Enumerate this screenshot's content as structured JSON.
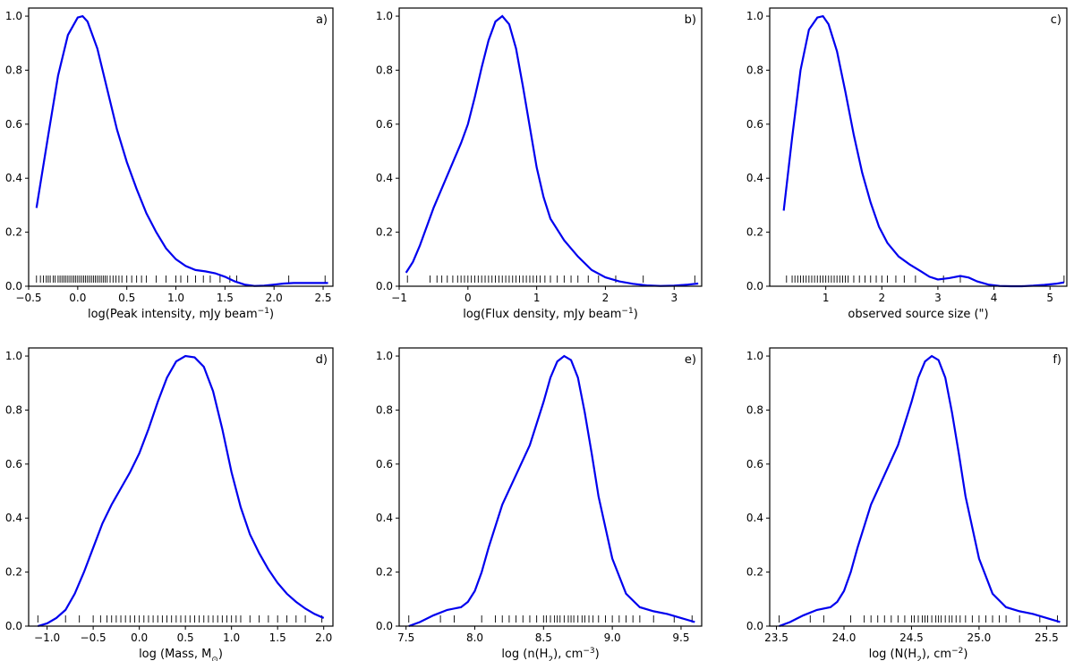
{
  "chart_data": [
    {
      "type": "line",
      "panel_label": "a)",
      "xlabel_main": "log(Peak intensity, mJy beam",
      "xlabel_sup": "−1",
      "xlabel_tail": ")",
      "xlim": [
        -0.5,
        2.6
      ],
      "ylim": [
        0,
        1.03
      ],
      "xticks": [
        -0.5,
        0.0,
        0.5,
        1.0,
        1.5,
        2.0,
        2.5
      ],
      "xtick_labels": [
        "−0.5",
        "0.0",
        "0.5",
        "1.0",
        "1.5",
        "2.0",
        "2.5"
      ],
      "yticks": [
        0.0,
        0.2,
        0.4,
        0.6,
        0.8,
        1.0
      ],
      "ytick_labels": [
        "0.0",
        "0.2",
        "0.4",
        "0.6",
        "0.8",
        "1.0"
      ],
      "series": [
        {
          "color": "#0000ee",
          "x": [
            -0.42,
            -0.3,
            -0.2,
            -0.1,
            0.0,
            0.05,
            0.1,
            0.2,
            0.3,
            0.4,
            0.5,
            0.6,
            0.7,
            0.8,
            0.9,
            1.0,
            1.1,
            1.2,
            1.3,
            1.4,
            1.5,
            1.6,
            1.7,
            1.8,
            1.9,
            2.0,
            2.1,
            2.2,
            2.3,
            2.4,
            2.55
          ],
          "y": [
            0.29,
            0.56,
            0.78,
            0.93,
            0.995,
            1.0,
            0.98,
            0.88,
            0.73,
            0.58,
            0.46,
            0.36,
            0.27,
            0.2,
            0.14,
            0.1,
            0.075,
            0.06,
            0.055,
            0.048,
            0.035,
            0.018,
            0.006,
            0.001,
            0.002,
            0.006,
            0.01,
            0.012,
            0.012,
            0.012,
            0.012
          ]
        }
      ],
      "rug": [
        -0.42,
        -0.38,
        -0.35,
        -0.32,
        -0.3,
        -0.28,
        -0.25,
        -0.23,
        -0.2,
        -0.18,
        -0.16,
        -0.14,
        -0.12,
        -0.1,
        -0.08,
        -0.06,
        -0.04,
        -0.02,
        0.0,
        0.02,
        0.04,
        0.06,
        0.08,
        0.1,
        0.12,
        0.14,
        0.16,
        0.18,
        0.2,
        0.22,
        0.24,
        0.26,
        0.28,
        0.3,
        0.33,
        0.36,
        0.39,
        0.42,
        0.45,
        0.5,
        0.55,
        0.6,
        0.65,
        0.7,
        0.8,
        0.9,
        1.0,
        1.05,
        1.12,
        1.2,
        1.28,
        1.35,
        1.45,
        1.55,
        1.62,
        2.15,
        2.52
      ]
    },
    {
      "type": "line",
      "panel_label": "b)",
      "xlabel_main": "log(Flux density, mJy beam",
      "xlabel_sup": "−1",
      "xlabel_tail": ")",
      "xlim": [
        -1.0,
        3.4
      ],
      "ylim": [
        0,
        1.03
      ],
      "xticks": [
        -1,
        0,
        1,
        2,
        3
      ],
      "xtick_labels": [
        "−1",
        "0",
        "1",
        "2",
        "3"
      ],
      "yticks": [
        0.0,
        0.2,
        0.4,
        0.6,
        0.8,
        1.0
      ],
      "ytick_labels": [
        "0.0",
        "0.2",
        "0.4",
        "0.6",
        "0.8",
        "1.0"
      ],
      "series": [
        {
          "color": "#0000ee",
          "x": [
            -0.9,
            -0.8,
            -0.7,
            -0.6,
            -0.5,
            -0.4,
            -0.3,
            -0.2,
            -0.1,
            0.0,
            0.1,
            0.2,
            0.3,
            0.4,
            0.5,
            0.6,
            0.7,
            0.8,
            0.9,
            1.0,
            1.1,
            1.2,
            1.4,
            1.6,
            1.8,
            2.0,
            2.2,
            2.4,
            2.6,
            2.8,
            3.0,
            3.2,
            3.35
          ],
          "y": [
            0.05,
            0.09,
            0.15,
            0.22,
            0.29,
            0.35,
            0.41,
            0.47,
            0.53,
            0.6,
            0.7,
            0.81,
            0.91,
            0.98,
            1.0,
            0.97,
            0.88,
            0.74,
            0.59,
            0.44,
            0.33,
            0.25,
            0.17,
            0.11,
            0.06,
            0.033,
            0.018,
            0.009,
            0.003,
            0.001,
            0.002,
            0.006,
            0.01
          ]
        }
      ],
      "rug": [
        -0.88,
        -0.55,
        -0.45,
        -0.38,
        -0.3,
        -0.22,
        -0.15,
        -0.1,
        -0.05,
        0.0,
        0.05,
        0.1,
        0.15,
        0.2,
        0.25,
        0.3,
        0.35,
        0.4,
        0.45,
        0.5,
        0.55,
        0.6,
        0.65,
        0.7,
        0.75,
        0.8,
        0.85,
        0.9,
        0.95,
        1.0,
        1.05,
        1.12,
        1.2,
        1.3,
        1.4,
        1.5,
        1.6,
        1.75,
        1.9,
        2.15,
        2.55,
        3.3
      ]
    },
    {
      "type": "line",
      "panel_label": "c)",
      "xlabel_main": "observed source size (\")",
      "xlabel_sup": "",
      "xlabel_tail": "",
      "xlim": [
        0.0,
        5.3
      ],
      "ylim": [
        0,
        1.03
      ],
      "xticks": [
        1,
        2,
        3,
        4,
        5
      ],
      "xtick_labels": [
        "1",
        "2",
        "3",
        "4",
        "5"
      ],
      "yticks": [
        0.0,
        0.2,
        0.4,
        0.6,
        0.8,
        1.0
      ],
      "ytick_labels": [
        "0.0",
        "0.2",
        "0.4",
        "0.6",
        "0.8",
        "1.0"
      ],
      "series": [
        {
          "color": "#0000ee",
          "x": [
            0.25,
            0.4,
            0.55,
            0.7,
            0.85,
            0.95,
            1.05,
            1.2,
            1.35,
            1.5,
            1.65,
            1.8,
            1.95,
            2.1,
            2.3,
            2.5,
            2.7,
            2.85,
            3.0,
            3.2,
            3.4,
            3.55,
            3.7,
            3.9,
            4.1,
            4.3,
            4.5,
            4.7,
            4.9,
            5.1,
            5.25
          ],
          "y": [
            0.28,
            0.55,
            0.8,
            0.95,
            0.995,
            1.0,
            0.97,
            0.87,
            0.72,
            0.56,
            0.42,
            0.31,
            0.22,
            0.16,
            0.11,
            0.08,
            0.055,
            0.035,
            0.025,
            0.03,
            0.038,
            0.032,
            0.018,
            0.006,
            0.001,
            0.0,
            0.0,
            0.002,
            0.005,
            0.009,
            0.014
          ]
        }
      ],
      "rug": [
        0.3,
        0.4,
        0.45,
        0.5,
        0.55,
        0.6,
        0.65,
        0.7,
        0.75,
        0.8,
        0.85,
        0.9,
        0.95,
        1.0,
        1.05,
        1.1,
        1.15,
        1.2,
        1.25,
        1.3,
        1.35,
        1.4,
        1.5,
        1.6,
        1.7,
        1.8,
        1.9,
        2.0,
        2.1,
        2.25,
        2.4,
        2.6,
        3.1,
        3.4,
        5.25
      ]
    },
    {
      "type": "line",
      "panel_label": "d)",
      "xlabel_main": "log (Mass, M",
      "xlabel_sup": "",
      "xlabel_sub": "⊙",
      "xlabel_tail": ")",
      "xlim": [
        -1.2,
        2.1
      ],
      "ylim": [
        0,
        1.03
      ],
      "xticks": [
        -1.0,
        -0.5,
        0.0,
        0.5,
        1.0,
        1.5,
        2.0
      ],
      "xtick_labels": [
        "−1.0",
        "−0.5",
        "0.0",
        "0.5",
        "1.0",
        "1.5",
        "2.0"
      ],
      "yticks": [
        0.0,
        0.2,
        0.4,
        0.6,
        0.8,
        1.0
      ],
      "ytick_labels": [
        "0.0",
        "0.2",
        "0.4",
        "0.6",
        "0.8",
        "1.0"
      ],
      "series": [
        {
          "color": "#0000ee",
          "x": [
            -1.1,
            -1.0,
            -0.9,
            -0.8,
            -0.7,
            -0.6,
            -0.5,
            -0.4,
            -0.3,
            -0.2,
            -0.1,
            0.0,
            0.1,
            0.2,
            0.3,
            0.4,
            0.5,
            0.6,
            0.7,
            0.8,
            0.9,
            1.0,
            1.1,
            1.2,
            1.3,
            1.4,
            1.5,
            1.6,
            1.7,
            1.8,
            1.9,
            2.0
          ],
          "y": [
            0.0,
            0.01,
            0.03,
            0.06,
            0.12,
            0.2,
            0.29,
            0.38,
            0.45,
            0.51,
            0.57,
            0.64,
            0.73,
            0.83,
            0.92,
            0.98,
            1.0,
            0.995,
            0.96,
            0.87,
            0.73,
            0.57,
            0.44,
            0.34,
            0.27,
            0.21,
            0.16,
            0.12,
            0.09,
            0.065,
            0.045,
            0.03
          ]
        }
      ],
      "rug": [
        -1.1,
        -0.8,
        -0.65,
        -0.5,
        -0.42,
        -0.35,
        -0.3,
        -0.25,
        -0.2,
        -0.15,
        -0.1,
        -0.05,
        0.0,
        0.05,
        0.1,
        0.15,
        0.2,
        0.25,
        0.3,
        0.35,
        0.4,
        0.45,
        0.5,
        0.55,
        0.6,
        0.65,
        0.7,
        0.75,
        0.8,
        0.85,
        0.9,
        0.95,
        1.0,
        1.05,
        1.1,
        1.2,
        1.3,
        1.4,
        1.5,
        1.6,
        1.7,
        1.8,
        1.98
      ]
    },
    {
      "type": "line",
      "panel_label": "e)",
      "xlabel_main": "log (n(H",
      "xlabel_sub": "2",
      "xlabel_mid": "), cm",
      "xlabel_sup": "−3",
      "xlabel_tail": ")",
      "xlim": [
        7.45,
        9.65
      ],
      "ylim": [
        0,
        1.03
      ],
      "xticks": [
        7.5,
        8.0,
        8.5,
        9.0,
        9.5
      ],
      "xtick_labels": [
        "7.5",
        "8.0",
        "8.5",
        "9.0",
        "9.5"
      ],
      "yticks": [
        0.0,
        0.2,
        0.4,
        0.6,
        0.8,
        1.0
      ],
      "ytick_labels": [
        "0.0",
        "0.2",
        "0.4",
        "0.6",
        "0.8",
        "1.0"
      ],
      "series": [
        {
          "color": "#0000ee",
          "x": [
            7.52,
            7.6,
            7.7,
            7.8,
            7.9,
            7.95,
            8.0,
            8.05,
            8.1,
            8.2,
            8.3,
            8.4,
            8.5,
            8.55,
            8.6,
            8.65,
            8.7,
            8.75,
            8.8,
            8.85,
            8.9,
            9.0,
            9.1,
            9.2,
            9.3,
            9.4,
            9.5,
            9.6
          ],
          "y": [
            0.0,
            0.015,
            0.04,
            0.06,
            0.07,
            0.09,
            0.13,
            0.2,
            0.29,
            0.45,
            0.56,
            0.67,
            0.83,
            0.92,
            0.98,
            1.0,
            0.985,
            0.92,
            0.79,
            0.64,
            0.48,
            0.25,
            0.12,
            0.07,
            0.055,
            0.045,
            0.03,
            0.015
          ]
        }
      ],
      "rug": [
        7.52,
        7.75,
        7.85,
        8.05,
        8.15,
        8.2,
        8.25,
        8.3,
        8.35,
        8.4,
        8.45,
        8.5,
        8.52,
        8.55,
        8.58,
        8.6,
        8.62,
        8.65,
        8.68,
        8.7,
        8.72,
        8.75,
        8.78,
        8.8,
        8.83,
        8.86,
        8.9,
        8.95,
        9.0,
        9.05,
        9.1,
        9.15,
        9.2,
        9.3,
        9.45,
        9.58
      ]
    },
    {
      "type": "line",
      "panel_label": "f)",
      "xlabel_main": "log (N(H",
      "xlabel_sub": "2",
      "xlabel_mid": "), cm",
      "xlabel_sup": "−2",
      "xlabel_tail": ")",
      "xlim": [
        23.45,
        25.65
      ],
      "ylim": [
        0,
        1.03
      ],
      "xticks": [
        23.5,
        24.0,
        24.5,
        25.0,
        25.5
      ],
      "xtick_labels": [
        "23.5",
        "24.0",
        "24.5",
        "25.0",
        "25.5"
      ],
      "yticks": [
        0.0,
        0.2,
        0.4,
        0.6,
        0.8,
        1.0
      ],
      "ytick_labels": [
        "0.0",
        "0.2",
        "0.4",
        "0.6",
        "0.8",
        "1.0"
      ],
      "series": [
        {
          "color": "#0000ee",
          "x": [
            23.52,
            23.6,
            23.7,
            23.8,
            23.9,
            23.95,
            24.0,
            24.05,
            24.1,
            24.2,
            24.3,
            24.4,
            24.5,
            24.55,
            24.6,
            24.65,
            24.7,
            24.75,
            24.8,
            24.85,
            24.9,
            25.0,
            25.1,
            25.2,
            25.3,
            25.4,
            25.5,
            25.6
          ],
          "y": [
            0.0,
            0.015,
            0.04,
            0.06,
            0.07,
            0.09,
            0.13,
            0.2,
            0.29,
            0.45,
            0.56,
            0.67,
            0.83,
            0.92,
            0.98,
            1.0,
            0.985,
            0.92,
            0.79,
            0.64,
            0.48,
            0.25,
            0.12,
            0.07,
            0.055,
            0.045,
            0.03,
            0.015
          ]
        }
      ],
      "rug": [
        23.52,
        23.75,
        23.85,
        24.05,
        24.15,
        24.2,
        24.25,
        24.3,
        24.35,
        24.4,
        24.45,
        24.5,
        24.52,
        24.55,
        24.58,
        24.6,
        24.62,
        24.65,
        24.68,
        24.7,
        24.72,
        24.75,
        24.78,
        24.8,
        24.83,
        24.86,
        24.9,
        24.95,
        25.0,
        25.05,
        25.1,
        25.15,
        25.2,
        25.3,
        25.45,
        25.58
      ]
    }
  ]
}
